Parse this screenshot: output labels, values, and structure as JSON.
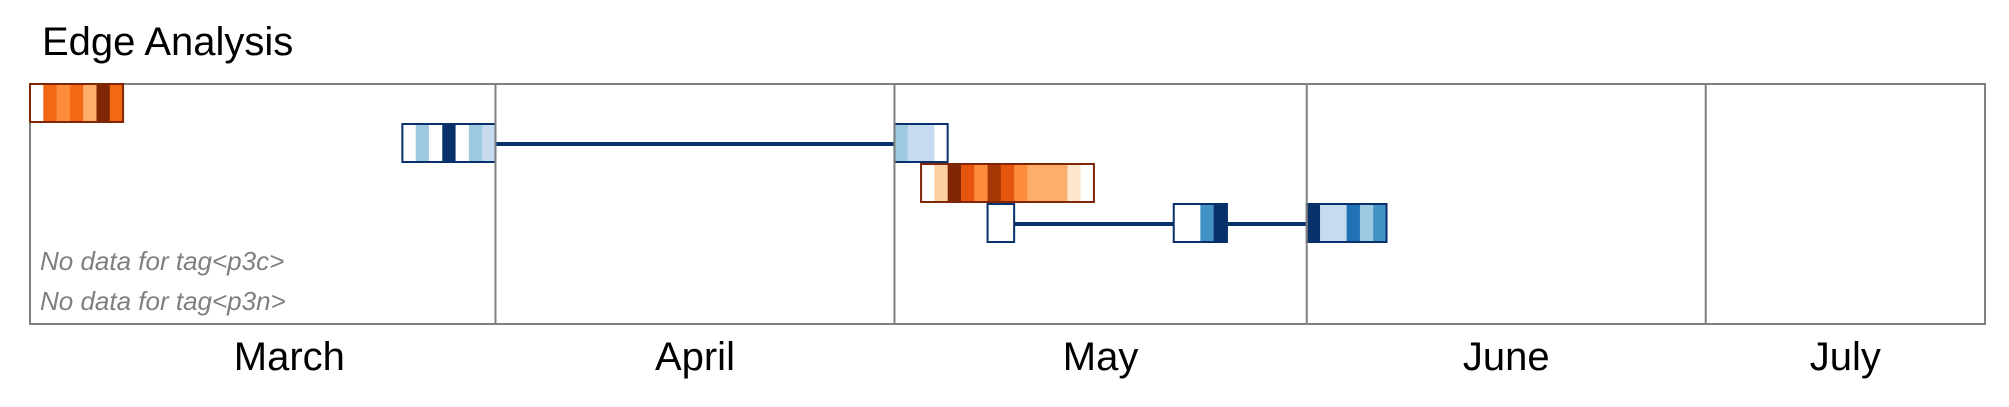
{
  "chart_data": {
    "type": "timeline",
    "title": "Edge Analysis",
    "x_range": [
      "2017-02-25",
      "2017-07-22"
    ],
    "months": [
      {
        "label": "March",
        "start": "2017-03-01",
        "end": "2017-03-31"
      },
      {
        "label": "April",
        "start": "2017-04-01",
        "end": "2017-04-30"
      },
      {
        "label": "May",
        "start": "2017-05-01",
        "end": "2017-05-31"
      },
      {
        "label": "June",
        "start": "2017-06-01",
        "end": "2017-06-30"
      },
      {
        "label": "July",
        "start": "2017-07-01",
        "end": "2017-07-31"
      }
    ],
    "no_data_messages": [
      "No data for tag<p3c>",
      "No data for tag<p3n>"
    ],
    "tracks": [
      {
        "palette": "orange",
        "row": 0,
        "border": "#7f2704",
        "blocks": [
          {
            "start": "2017-02-25",
            "cells": [
              "#ffffff",
              "#f16913",
              "#fd8d3c",
              "#f16913",
              "#fdae6b",
              "#7f2704",
              "#f16913"
            ]
          }
        ],
        "connectors": []
      },
      {
        "palette": "blue",
        "row": 1,
        "border": "#08306b",
        "blocks": [
          {
            "start": "2017-03-25",
            "cells": [
              "#ffffff",
              "#9ecae1",
              "#ffffff",
              "#08306b",
              "#ffffff",
              "#9ecae1",
              "#c6dbef"
            ]
          },
          {
            "start": "2017-05-01",
            "cells": [
              "#9ecae1",
              "#c6dbef",
              "#c6dbef",
              "#ffffff"
            ]
          }
        ],
        "connectors": [
          [
            "2017-03-31",
            "2017-05-01"
          ]
        ]
      },
      {
        "palette": "orange",
        "row": 2,
        "border": "#7f2704",
        "blocks": [
          {
            "start": "2017-05-03",
            "cells": [
              "#ffffff",
              "#fdd0a2",
              "#7f2704",
              "#e6550d",
              "#fd8d3c",
              "#a63603",
              "#e6550d",
              "#fd8d3c",
              "#fdae6b",
              "#fdae6b",
              "#fdae6b",
              "#fee6ce",
              "#ffffff"
            ]
          }
        ],
        "connectors": []
      },
      {
        "palette": "blue",
        "row": 3,
        "border": "#08306b",
        "blocks": [
          {
            "start": "2017-05-08",
            "cells": [
              "#ffffff",
              "#ffffff"
            ]
          },
          {
            "start": "2017-05-22",
            "cells": [
              "#ffffff",
              "#ffffff",
              "#4292c6",
              "#08306b"
            ]
          },
          {
            "start": "2017-06-01",
            "cells": [
              "#08306b",
              "#c6dbef",
              "#c6dbef",
              "#2171b5",
              "#9ecae1",
              "#4292c6"
            ]
          }
        ],
        "connectors": [
          [
            "2017-05-10",
            "2017-05-22"
          ],
          [
            "2017-05-26",
            "2017-06-01"
          ]
        ]
      }
    ]
  }
}
